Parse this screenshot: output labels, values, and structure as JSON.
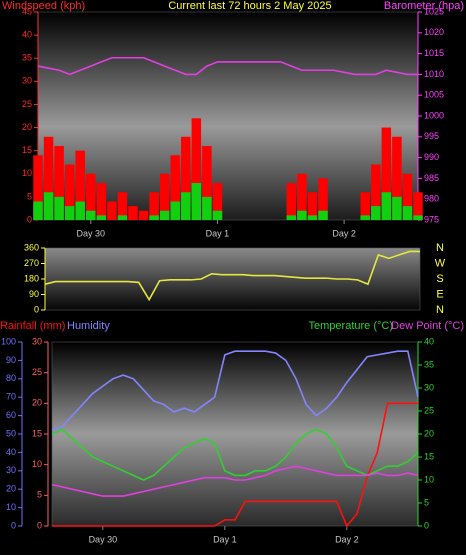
{
  "chart_data": [
    {
      "type": "bar",
      "title": "Current last 72 hours 2 May 2025",
      "ylabel": "Windspeed (kph)",
      "y2label": "Barometer (hpa)",
      "x": [
        0,
        2,
        4,
        6,
        8,
        10,
        12,
        14,
        16,
        18,
        20,
        22,
        24,
        26,
        28,
        30,
        32,
        34,
        36,
        38,
        40,
        42,
        44,
        46,
        48,
        50,
        52,
        54,
        56,
        58,
        60,
        62,
        64,
        66,
        68,
        70,
        72
      ],
      "xlim": [
        0,
        72
      ],
      "xticks": [
        {
          "value": 10,
          "label": "Day 30"
        },
        {
          "value": 34,
          "label": "Day 1"
        },
        {
          "value": 58,
          "label": "Day 2"
        }
      ],
      "ylim": [
        0,
        45
      ],
      "yticks": [
        0,
        5,
        10,
        15,
        20,
        25,
        30,
        35,
        40,
        45
      ],
      "y2lim": [
        975,
        1025
      ],
      "y2ticks": [
        975,
        980,
        985,
        990,
        995,
        1000,
        1005,
        1010,
        1015,
        1020,
        1025
      ],
      "series": [
        {
          "color": "#ff0000",
          "type": "bar",
          "values": [
            14,
            18,
            16,
            12,
            15,
            10,
            8,
            4,
            6,
            3,
            2,
            6,
            10,
            14,
            18,
            22,
            16,
            8,
            0,
            0,
            0,
            0,
            0,
            0,
            8,
            10,
            6,
            9,
            0,
            0,
            0,
            6,
            12,
            20,
            18,
            10,
            6
          ]
        },
        {
          "color": "#10d010",
          "type": "bar",
          "values": [
            4,
            6,
            5,
            3,
            4,
            2,
            1,
            0,
            1,
            0,
            0,
            1,
            2,
            4,
            6,
            8,
            5,
            2,
            0,
            0,
            0,
            0,
            0,
            0,
            1,
            2,
            1,
            2,
            0,
            0,
            0,
            1,
            3,
            6,
            5,
            3,
            1
          ]
        },
        {
          "color": "#e040e0",
          "type": "line",
          "axis": "y2",
          "values": [
            1012,
            1011.5,
            1011,
            1010,
            1011,
            1012,
            1013,
            1014,
            1014,
            1014,
            1014,
            1013,
            1012,
            1011,
            1010,
            1010,
            1012,
            1013,
            1013,
            1013,
            1013,
            1013,
            1013,
            1013,
            1012,
            1011,
            1011,
            1011,
            1011,
            1010.5,
            1010,
            1010,
            1010,
            1011,
            1010.5,
            1010,
            1010
          ]
        }
      ]
    },
    {
      "type": "line",
      "x": [
        0,
        2,
        4,
        6,
        8,
        10,
        12,
        14,
        16,
        18,
        20,
        22,
        24,
        26,
        28,
        30,
        32,
        34,
        36,
        38,
        40,
        42,
        44,
        46,
        48,
        50,
        52,
        54,
        56,
        58,
        60,
        62,
        64,
        66,
        68,
        70,
        72
      ],
      "xlim": [
        0,
        72
      ],
      "ylim": [
        0,
        360
      ],
      "yticks": [
        0,
        90,
        180,
        270,
        360
      ],
      "compass": [
        "N",
        "W",
        "S",
        "E",
        "N"
      ],
      "series": [
        {
          "color": "#e6e640",
          "values": [
            150,
            165,
            165,
            165,
            165,
            165,
            165,
            165,
            165,
            160,
            60,
            170,
            175,
            175,
            175,
            180,
            210,
            205,
            205,
            205,
            200,
            200,
            200,
            195,
            190,
            185,
            185,
            185,
            180,
            180,
            175,
            150,
            320,
            300,
            320,
            340,
            340
          ]
        }
      ]
    },
    {
      "type": "line",
      "x": [
        0,
        2,
        4,
        6,
        8,
        10,
        12,
        14,
        16,
        18,
        20,
        22,
        24,
        26,
        28,
        30,
        32,
        34,
        36,
        38,
        40,
        42,
        44,
        46,
        48,
        50,
        52,
        54,
        56,
        58,
        60,
        62,
        64,
        66,
        68,
        70,
        72
      ],
      "xlim": [
        0,
        72
      ],
      "xticks": [
        {
          "value": 10,
          "label": "Day 30"
        },
        {
          "value": 34,
          "label": "Day 1"
        },
        {
          "value": 58,
          "label": "Day 2"
        }
      ],
      "ylim": [
        0,
        30
      ],
      "yticks": [
        0,
        5,
        10,
        15,
        20,
        25,
        30
      ],
      "y2lim": [
        0,
        40
      ],
      "y2ticks": [
        0,
        5,
        10,
        15,
        20,
        25,
        30,
        35,
        40
      ],
      "y3lim": [
        0,
        100
      ],
      "y3ticks": [
        0,
        10,
        20,
        30,
        40,
        50,
        60,
        70,
        80,
        90,
        100
      ],
      "series": [
        {
          "name": "Rainfall (mm)",
          "color": "#ff1010",
          "axis": "y",
          "values": [
            0,
            0,
            0,
            0,
            0,
            0,
            0,
            0,
            0,
            0,
            0,
            0,
            0,
            0,
            0,
            0,
            0,
            1,
            1,
            4,
            4,
            4,
            4,
            4,
            4,
            4,
            4,
            4,
            4,
            0,
            2,
            8,
            12,
            20,
            20,
            20,
            20
          ]
        },
        {
          "name": "Humidity",
          "color": "#8484ff",
          "axis": "y3",
          "values": [
            52,
            54,
            60,
            66,
            72,
            76,
            80,
            82,
            80,
            74,
            68,
            66,
            62,
            64,
            62,
            66,
            70,
            93,
            95,
            95,
            95,
            95,
            94,
            90,
            80,
            66,
            60,
            64,
            70,
            78,
            85,
            92,
            93,
            94,
            95,
            95,
            70
          ]
        },
        {
          "name": "Temperature (°C)",
          "color": "#30d030",
          "axis": "y2",
          "values": [
            20,
            21,
            19,
            17,
            15,
            14,
            13,
            12,
            11,
            10,
            11,
            13,
            15,
            17,
            18,
            19,
            18,
            12,
            11,
            11,
            12,
            12,
            13,
            15,
            18,
            20,
            21,
            20,
            17,
            13,
            12,
            11,
            12,
            13,
            13,
            14,
            16
          ]
        },
        {
          "name": "Dew Point (°C)",
          "color": "#e040e0",
          "axis": "y2",
          "values": [
            9,
            8.5,
            8,
            7.5,
            7,
            6.5,
            6.5,
            6.5,
            7,
            7.5,
            8,
            8.5,
            9,
            9.5,
            10,
            10.5,
            10.5,
            10.5,
            10,
            10,
            10.5,
            11,
            12,
            12.5,
            13,
            12.5,
            12,
            11.5,
            11,
            11,
            11,
            11,
            11.5,
            11,
            11,
            11.5,
            11
          ]
        }
      ]
    }
  ]
}
